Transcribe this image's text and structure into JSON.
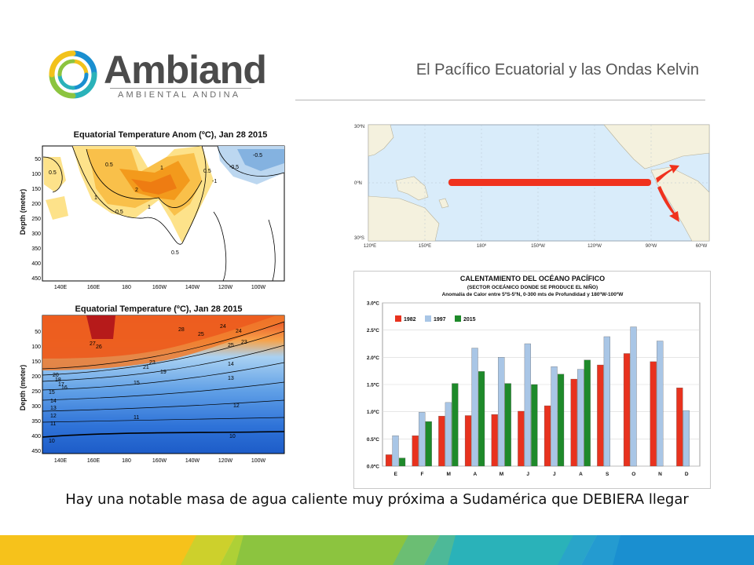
{
  "brand": {
    "name": "Ambiand",
    "tagline": "AMBIENTAL ANDINA",
    "colors": {
      "text": "#4b4b4b",
      "blue": "#1a8fd0",
      "green": "#8cc43f",
      "yellow": "#f2c21b",
      "teal": "#2ab2b9"
    }
  },
  "slide": {
    "title": "El Pacífico Ecuatorial y las Ondas Kelvin",
    "caption": "Hay una notable masa de agua caliente muy próxima a Sudamérica que DEBIERA llegar"
  },
  "anomaly_panel": {
    "title": "Equatorial Temperature Anom (ºC), Jan 28 2015",
    "ylabel": "Depth (meter)",
    "y_ticks": [
      "50",
      "100",
      "150",
      "200",
      "250",
      "300",
      "350",
      "400",
      "450"
    ],
    "x_ticks": [
      "140E",
      "160E",
      "180",
      "160W",
      "140W",
      "120W",
      "100W"
    ],
    "contour_labels": [
      "0.5",
      "1",
      "2",
      "1",
      "0.5",
      "1",
      "-0.5",
      "0.5",
      "-1",
      "0.5",
      "-0.5",
      "0.5"
    ]
  },
  "temperature_panel": {
    "title": "Equatorial Temperature (ºC), Jan 28 2015",
    "ylabel": "Depth (meter)",
    "y_ticks": [
      "50",
      "100",
      "150",
      "200",
      "250",
      "300",
      "350",
      "400",
      "450"
    ],
    "x_ticks": [
      "140E",
      "160E",
      "180",
      "160W",
      "140W",
      "120W",
      "100W"
    ],
    "contour_labels": [
      "28",
      "27",
      "26",
      "25",
      "24",
      "23",
      "21",
      "20",
      "19",
      "18",
      "17",
      "16",
      "15",
      "14",
      "13",
      "12",
      "11",
      "10",
      "25",
      "24",
      "23",
      "15",
      "14",
      "13",
      "12",
      "11",
      "10"
    ]
  },
  "map_panel": {
    "lat_labels": [
      "30ºN",
      "0ºN",
      "30ºS"
    ],
    "lon_labels": [
      "120ºE",
      "150ºE",
      "180º",
      "150ºW",
      "120ºW",
      "90ºW",
      "60ºW"
    ],
    "arrow_color": "#f0321e"
  },
  "chart_data": {
    "type": "bar",
    "title": "CALENTAMIENTO DEL OCÉANO PACÍFICO",
    "subtitle": "(SECTOR OCEÁNICO DONDE SE PRODUCE EL NIÑO)",
    "subtitle2": "Anomalía de Calor entre 5ºS-5ºN, 0-300 mts de Profundidad y 180ºW-100ºW",
    "categories": [
      "E",
      "F",
      "M",
      "A",
      "M",
      "J",
      "J",
      "A",
      "S",
      "O",
      "N",
      "D"
    ],
    "y_ticks": [
      "0.0ºC",
      "0.5ºC",
      "1.0ºC",
      "1.5ºC",
      "2.0ºC",
      "2.5ºC",
      "3.0ºC"
    ],
    "ylim": [
      0,
      3.0
    ],
    "legend_position": "top-left",
    "series": [
      {
        "name": "1982",
        "color": "#e8321e",
        "values": [
          0.21,
          0.56,
          0.92,
          0.93,
          0.95,
          1.01,
          1.11,
          1.6,
          1.86,
          2.07,
          1.92,
          1.44
        ]
      },
      {
        "name": "1997",
        "color": "#a9c6e6",
        "values": [
          0.56,
          0.99,
          1.17,
          2.17,
          2.0,
          2.25,
          1.83,
          1.78,
          2.38,
          2.56,
          2.3,
          1.02
        ]
      },
      {
        "name": "2015",
        "color": "#1e8a2a",
        "values": [
          0.15,
          0.82,
          1.52,
          1.74,
          1.52,
          1.5,
          1.69,
          1.95,
          null,
          null,
          null,
          null
        ]
      }
    ]
  }
}
